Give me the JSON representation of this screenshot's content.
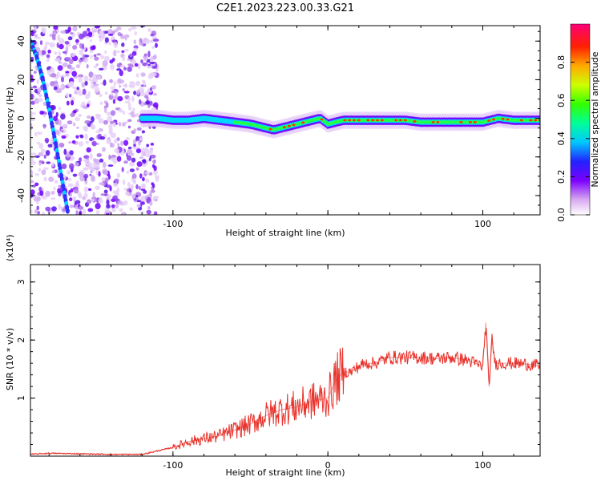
{
  "title": "C2E1.2023.223.00.33.G21",
  "chart_data": [
    {
      "type": "heatmap",
      "xlabel": "Height of straight line (km)",
      "ylabel": "Frequency (Hz)",
      "xlim": [
        -192,
        137
      ],
      "ylim": [
        -50,
        48
      ],
      "x_ticks": [
        -100,
        0,
        100
      ],
      "x_tick_labels": [
        "-100",
        "",
        "100"
      ],
      "y_ticks": [
        -40,
        -20,
        0,
        20,
        40
      ],
      "y_tick_labels": [
        "-40",
        "-20",
        "0",
        "20",
        "40"
      ],
      "colorbar": {
        "label": "Normalized spectral amplitude",
        "range": [
          0,
          1
        ],
        "ticks": [
          0.0,
          0.2,
          0.4,
          0.6,
          0.8
        ],
        "tick_labels": [
          "0.0",
          "0.2",
          "0.4",
          "0.6",
          "0.8"
        ]
      },
      "ridge": {
        "x": [
          -118,
          -110,
          -100,
          -90,
          -80,
          -70,
          -60,
          -50,
          -40,
          -35,
          -30,
          -20,
          -10,
          -5,
          0,
          10,
          20,
          30,
          40,
          50,
          60,
          70,
          80,
          90,
          100,
          110,
          120,
          137
        ],
        "y": [
          0,
          0,
          -1,
          -1,
          0,
          -1,
          -2,
          -3,
          -5,
          -6,
          -5,
          -3,
          -1,
          0,
          -3,
          -1,
          -1,
          -1,
          -1,
          -1,
          -2,
          -2,
          -2,
          -2,
          -2,
          0,
          -1,
          -1
        ]
      },
      "steep_trace": {
        "x": [
          -192,
          -188,
          -184,
          -180,
          -176,
          -172,
          -168
        ],
        "y": [
          40,
          32,
          20,
          5,
          -12,
          -30,
          -48
        ]
      }
    },
    {
      "type": "line",
      "xlabel": "Height of straight line (km)",
      "ylabel": "SNR (10 * v/v)",
      "y_multiplier": "(x10⁴)",
      "xlim": [
        -192,
        137
      ],
      "ylim": [
        0,
        3.3
      ],
      "x_ticks": [
        -100,
        0,
        100
      ],
      "x_tick_labels": [
        "-100",
        "0",
        "100"
      ],
      "y_ticks": [
        1,
        2,
        3
      ],
      "y_tick_labels": [
        "1",
        "2",
        "3"
      ],
      "series": [
        {
          "color": "#e8332c",
          "x": [
            -192,
            -180,
            -160,
            -140,
            -120,
            -100,
            -90,
            -80,
            -70,
            -60,
            -50,
            -40,
            -30,
            -20,
            -10,
            0,
            5,
            10,
            15,
            20,
            25,
            30,
            35,
            40,
            45,
            50,
            60,
            70,
            80,
            90,
            95,
            100,
            102,
            104,
            106,
            108,
            110,
            120,
            130,
            137
          ],
          "y": [
            0.03,
            0.05,
            0.04,
            0.03,
            0.03,
            0.15,
            0.25,
            0.3,
            0.35,
            0.45,
            0.55,
            0.7,
            0.8,
            0.85,
            0.95,
            1.0,
            1.3,
            1.45,
            1.45,
            1.55,
            1.6,
            1.6,
            1.65,
            1.7,
            1.7,
            1.7,
            1.7,
            1.68,
            1.7,
            1.65,
            1.6,
            1.55,
            2.3,
            1.2,
            2.0,
            1.6,
            1.6,
            1.6,
            1.58,
            1.55
          ]
        }
      ]
    }
  ]
}
